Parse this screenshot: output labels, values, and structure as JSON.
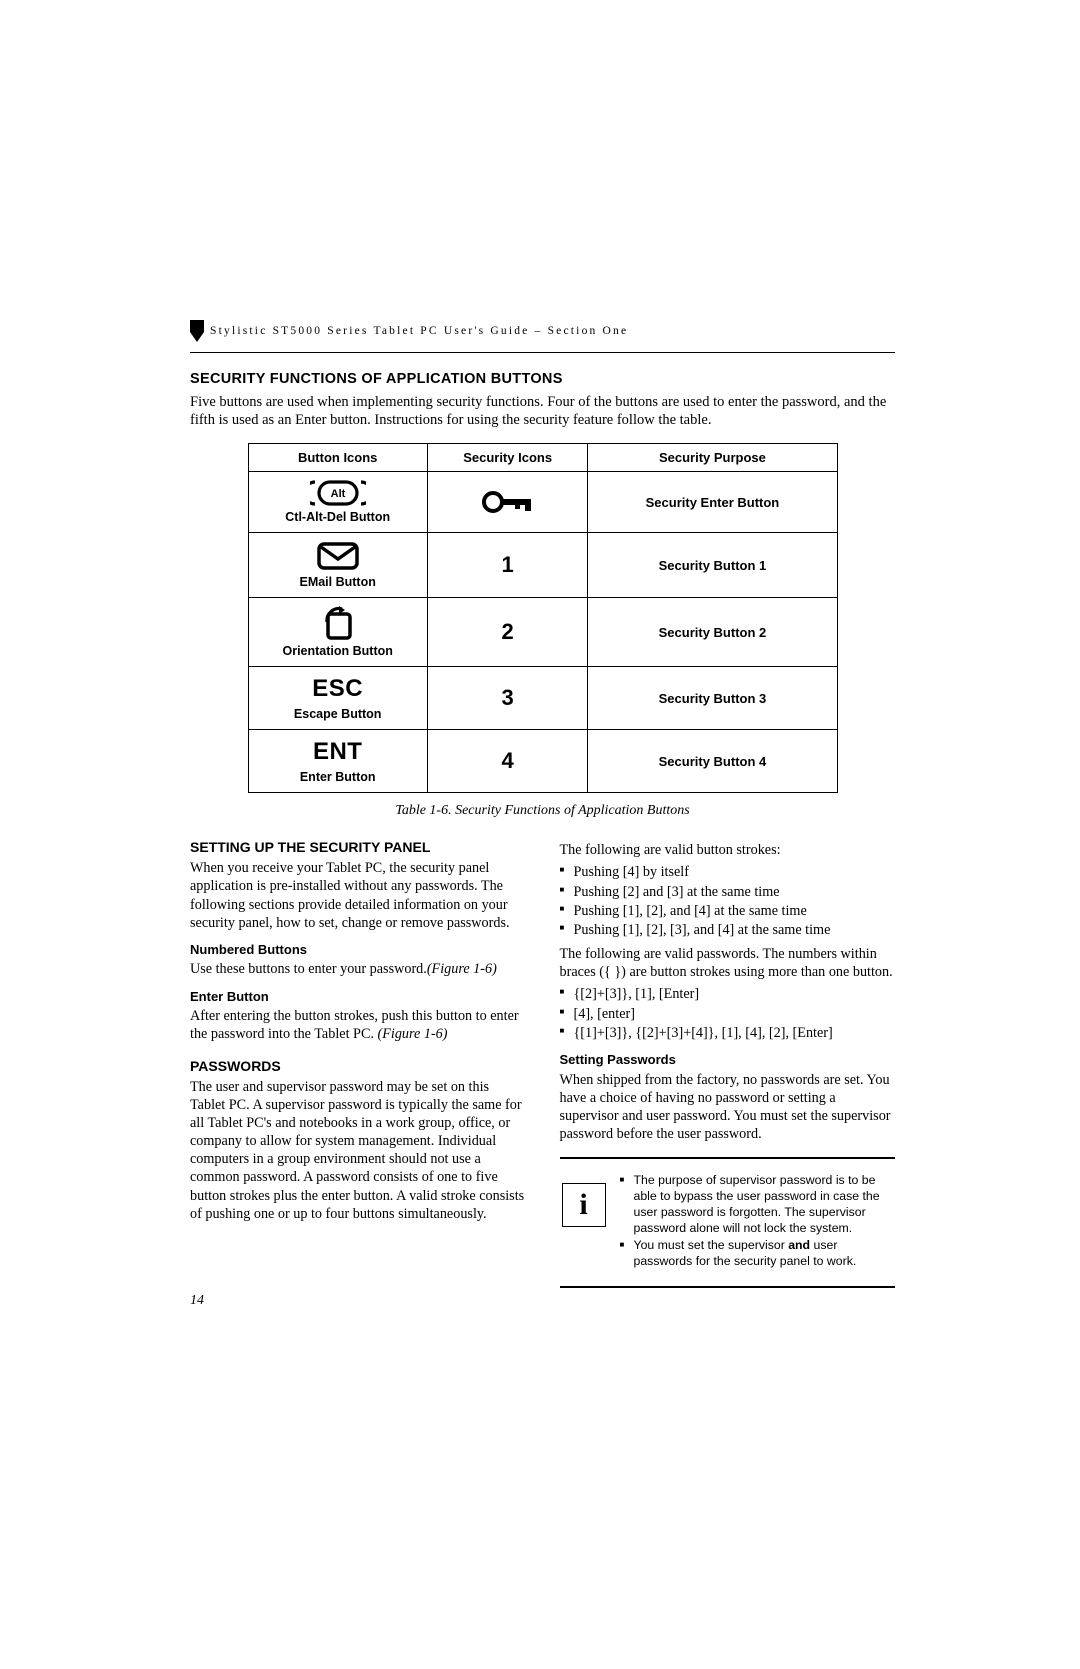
{
  "header": {
    "running_head": "Stylistic ST5000 Series Tablet PC User's Guide – Section One"
  },
  "section1": {
    "title": "SECURITY FUNCTIONS OF APPLICATION BUTTONS",
    "intro": "Five buttons are used when implementing security functions. Four of the buttons are used to enter the password, and the fifth is used as an Enter button. Instructions for using the security feature follow the table."
  },
  "table": {
    "headers": [
      "Button Icons",
      "Security Icons",
      "Security Purpose"
    ],
    "rows": [
      {
        "label": "Ctl-Alt-Del Button",
        "sec_icon": "key",
        "purpose": "Security Enter Button"
      },
      {
        "label": "EMail Button",
        "sec_icon": "1",
        "purpose": "Security Button 1"
      },
      {
        "label": "Orientation Button",
        "sec_icon": "2",
        "purpose": "Security Button 2"
      },
      {
        "label": "Escape Button",
        "sec_icon": "3",
        "purpose": "Security Button 3",
        "glyph": "ESC"
      },
      {
        "label": "Enter Button",
        "sec_icon": "4",
        "purpose": "Security Button 4",
        "glyph": "ENT"
      }
    ],
    "caption": "Table 1-6. Security Functions of Application Buttons"
  },
  "left_col": {
    "h1": "SETTING UP THE SECURITY PANEL",
    "p1": "When you receive your Tablet PC, the security panel application is pre-installed without any passwords. The following sections provide detailed information on your security panel, how to set, change or remove passwords.",
    "h2": "Numbered Buttons",
    "p2": "Use these buttons to enter your password.",
    "p2_ref": "(Figure 1-6)",
    "h3": "Enter Button",
    "p3a": "After entering the button strokes, push this button to enter the password into the Tablet PC. ",
    "p3_ref": "(Figure 1-6)",
    "h4": "PASSWORDS",
    "p4": "The user and supervisor password may be set on this Tablet PC. A supervisor password is typically the same for all Tablet PC's and notebooks in a work group, office, or company to allow for system management. Individual computers in a group environment should not use a common password. A password consists of one to five button strokes plus the enter button. A valid stroke consists of pushing one or up to four buttons simultaneously."
  },
  "right_col": {
    "p0": "The following are valid button strokes:",
    "strokes": [
      "Pushing [4] by itself",
      "Pushing [2] and [3] at the same time",
      "Pushing [1], [2], and [4] at the same time",
      "Pushing [1], [2], [3], and [4] at the same time"
    ],
    "p1": "The following are valid passwords. The numbers within braces ({  }) are button strokes using more than one button.",
    "passwords": [
      "{[2]+[3]}, [1], [Enter]",
      "[4], [enter]",
      "{[1]+[3]}, {[2]+[3]+[4]}, [1], [4], [2], [Enter]"
    ],
    "h_set": "Setting Passwords",
    "p_set": "When shipped from the factory, no passwords are set. You have a choice of having no password or setting a supervisor and user password. You must set the supervisor password before the user password.",
    "info": [
      "The purpose of supervisor password is to be able to bypass the user password in case the user password is forgotten. The supervisor password alone will not lock the system.",
      "You must set the supervisor and user passwords for the security panel to work."
    ],
    "info_bold_word": "and"
  },
  "page_number": "14"
}
